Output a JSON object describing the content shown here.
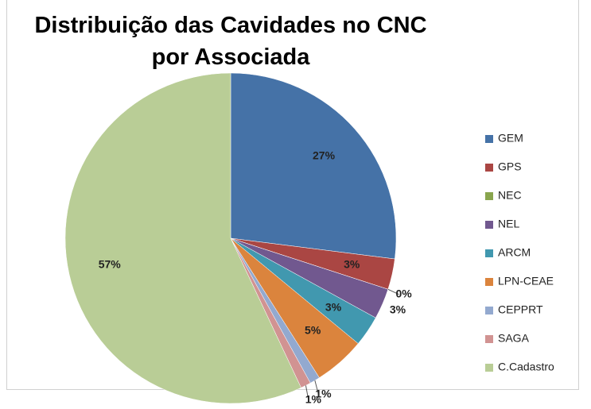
{
  "chart_data": {
    "type": "pie",
    "title": "Distribuição das Cavidades no CNC por Associada",
    "categories": [
      "GEM",
      "GPS",
      "NEC",
      "NEL",
      "ARCM",
      "LPN-CEAE",
      "CEPPRT",
      "SAGA",
      "C.Cadastro"
    ],
    "values": [
      27,
      3,
      0,
      3,
      3,
      5,
      1,
      1,
      57
    ],
    "value_labels": [
      "27%",
      "3%",
      "0%",
      "3%",
      "3%",
      "5%",
      "1%",
      "1%",
      "57%"
    ],
    "colors": [
      "#4572a7",
      "#aa4643",
      "#89a54e",
      "#71588f",
      "#4198af",
      "#db843d",
      "#93a9cf",
      "#d19392",
      "#b9cd96"
    ],
    "legend": "right"
  }
}
